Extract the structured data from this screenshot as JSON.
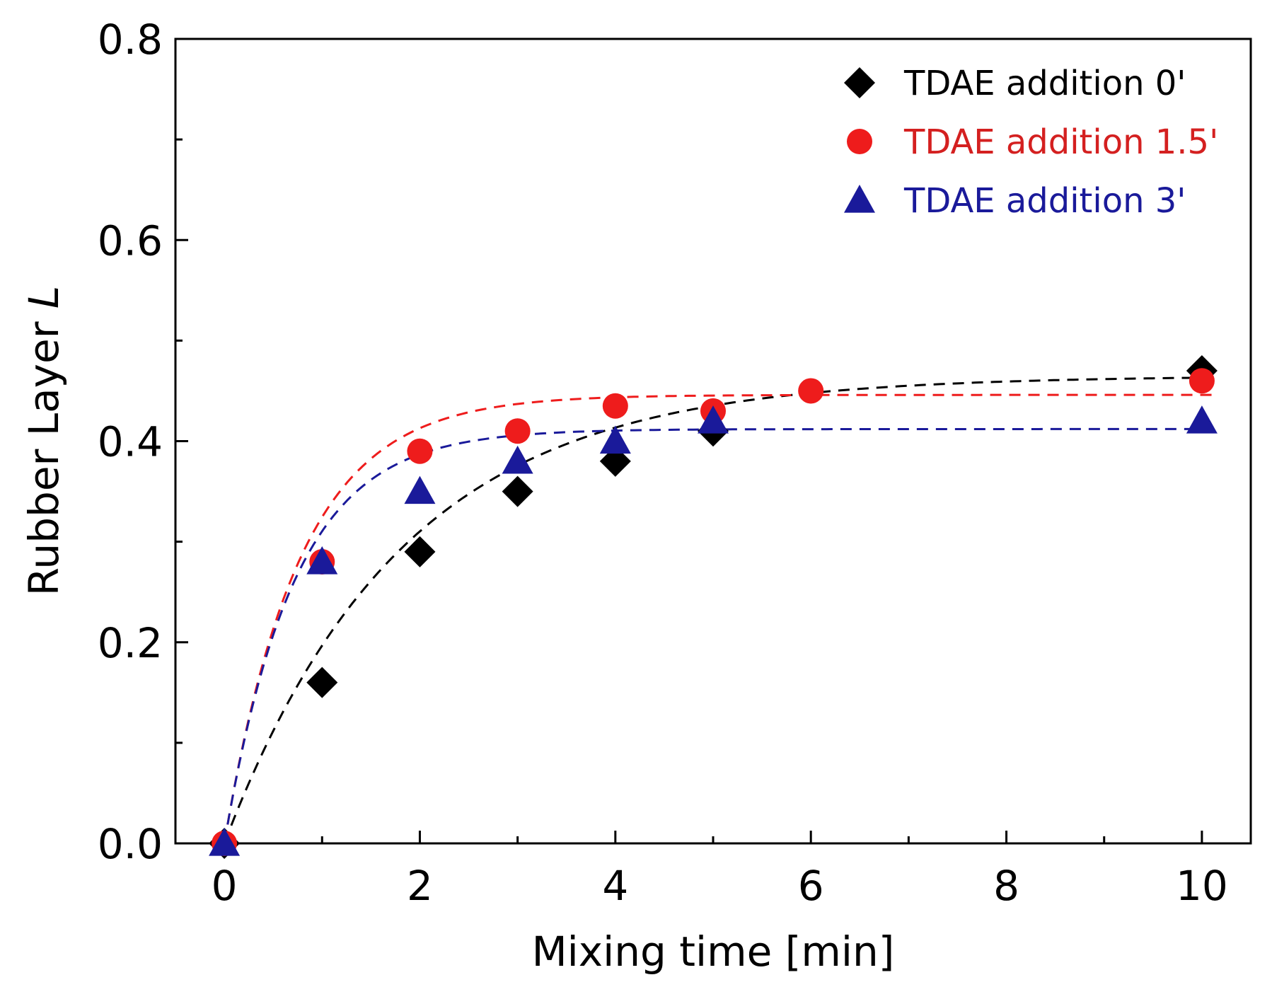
{
  "chart_data": {
    "type": "scatter",
    "title": "",
    "xlabel": "Mixing time [min]",
    "ylabel_prefix": "Rubber Layer ",
    "ylabel_italic": "L",
    "xlim": [
      -0.5,
      10.5
    ],
    "ylim": [
      0.0,
      0.8
    ],
    "x_ticks": [
      0,
      2,
      4,
      6,
      8,
      10
    ],
    "x_tick_labels": [
      "0",
      "2",
      "4",
      "6",
      "8",
      "10"
    ],
    "y_ticks": [
      0.0,
      0.2,
      0.4,
      0.6,
      0.8
    ],
    "y_tick_labels": [
      "0.0",
      "0.2",
      "0.4",
      "0.6",
      "0.8"
    ],
    "grid": false,
    "legend_position": "top-right",
    "series": [
      {
        "name": "TDAE addition 0'",
        "marker": "diamond",
        "color": "#000000",
        "label_color": "#000000",
        "x": [
          0,
          1,
          2,
          3,
          4,
          5,
          10
        ],
        "y": [
          0.0,
          0.16,
          0.29,
          0.35,
          0.38,
          0.41,
          0.47
        ],
        "fit": {
          "a": 0.465,
          "k": 0.55
        }
      },
      {
        "name": "TDAE addition 1.5'",
        "marker": "circle",
        "color": "#ee1c1c",
        "label_color": "#d42020",
        "x": [
          0,
          1,
          2,
          3,
          4,
          5,
          6,
          10
        ],
        "y": [
          0.0,
          0.28,
          0.39,
          0.41,
          0.435,
          0.43,
          0.45,
          0.46
        ],
        "fit": {
          "a": 0.446,
          "k": 1.3
        }
      },
      {
        "name": "TDAE addition 3'",
        "marker": "triangle",
        "color": "#1a1a9a",
        "label_color": "#1a1a9a",
        "x": [
          0,
          1,
          2,
          3,
          4,
          5,
          10
        ],
        "y": [
          0.0,
          0.28,
          0.35,
          0.38,
          0.4,
          0.42,
          0.42
        ],
        "fit": {
          "a": 0.412,
          "k": 1.4
        }
      }
    ]
  }
}
